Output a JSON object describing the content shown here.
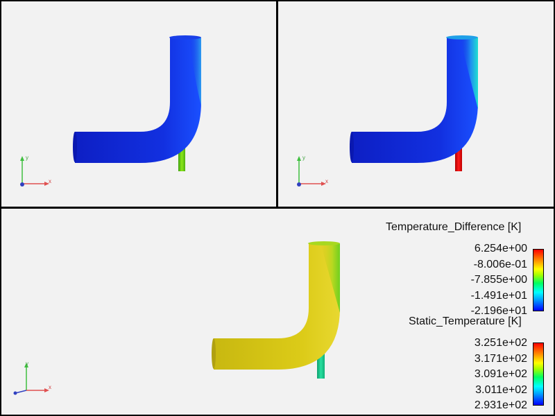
{
  "window": {
    "layout": "three-viewport post-processing display"
  },
  "viewports": [
    {
      "id": "top-left",
      "scalar": "Temperature_Difference",
      "main_pipe_color": "#1a2ed6",
      "branch_color": "#64d21a"
    },
    {
      "id": "top-right",
      "scalar": "Temperature_Difference",
      "main_pipe_color": "#1a30d8",
      "branch_color": "#d81a1a"
    },
    {
      "id": "bottom",
      "scalar": "Static_Temperature",
      "main_pipe_color": "#d8c91a",
      "branch_color": "#1ad08a"
    }
  ],
  "axes": {
    "x_label": "x",
    "y_label": "y"
  },
  "legend_temperature_difference": {
    "title": "Temperature_Difference [K]",
    "ticks": [
      "6.254e+00",
      "-8.006e-01",
      "-7.855e+00",
      "-1.491e+01",
      "-2.196e+01"
    ]
  },
  "legend_static_temperature": {
    "title": "Static_Temperature [K]",
    "ticks": [
      "3.251e+02",
      "3.171e+02",
      "3.091e+02",
      "3.011e+02",
      "2.931e+02"
    ]
  },
  "colors": {
    "background": "#f2f2f2",
    "frame": "#000000",
    "axis_x": "#e05050",
    "axis_y": "#40c040",
    "axis_z": "#3040c0"
  }
}
